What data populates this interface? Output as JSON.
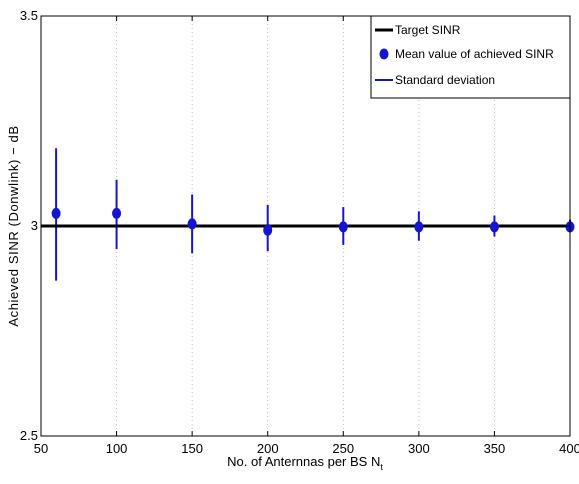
{
  "chart_data": {
    "type": "scatter",
    "title": "",
    "xlabel": "No. of Anternnas per BS N",
    "xlabel_subscript": "t",
    "ylabel": "Achieved SINR (Donwlink) − dB",
    "xlim": [
      50,
      400
    ],
    "ylim": [
      2.5,
      3.5
    ],
    "xticks": [
      50,
      100,
      150,
      200,
      250,
      300,
      350,
      400
    ],
    "yticks": [
      2.5,
      3,
      3.5
    ],
    "xtick_labels": [
      "50",
      "100",
      "150",
      "200",
      "250",
      "300",
      "350",
      "400"
    ],
    "ytick_labels": [
      "2.5",
      "3",
      "3.5"
    ],
    "grid": "vertical dotted",
    "legend_position": "top-right",
    "target": {
      "name": "Target SINR",
      "value": 3.0,
      "color": "#000000"
    },
    "series": [
      {
        "name": "Mean value of achieved SINR",
        "color": "#1414d4",
        "x": [
          60,
          100,
          150,
          200,
          250,
          300,
          350,
          400
        ],
        "y": [
          3.03,
          3.03,
          3.005,
          2.99,
          2.998,
          2.998,
          2.998,
          2.998
        ]
      }
    ],
    "error_bars": {
      "name": "Standard deviation",
      "color": "#1414d4",
      "x": [
        60,
        100,
        150,
        200,
        250,
        300,
        350,
        400
      ],
      "low": [
        2.87,
        2.945,
        2.935,
        2.94,
        2.955,
        2.965,
        2.975,
        2.985
      ],
      "high": [
        3.185,
        3.11,
        3.075,
        3.05,
        3.045,
        3.035,
        3.025,
        3.015
      ]
    },
    "legend": [
      "Target SINR",
      "Mean value of achieved SINR",
      "Standard deviation"
    ]
  }
}
